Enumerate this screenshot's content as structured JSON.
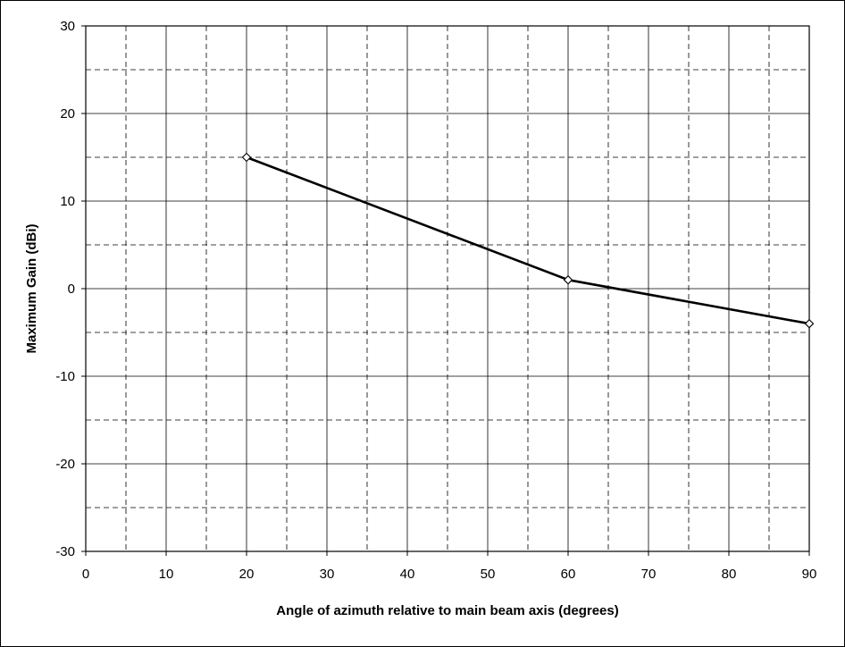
{
  "chart_data": {
    "type": "line",
    "title": "",
    "xlabel": "Angle of azimuth relative to main beam axis (degrees)",
    "ylabel": "Maximum Gain (dBi)",
    "xlim": [
      0,
      90
    ],
    "ylim": [
      -30,
      30
    ],
    "x_major_ticks": [
      0,
      10,
      20,
      30,
      40,
      50,
      60,
      70,
      80,
      90
    ],
    "y_major_ticks": [
      -30,
      -20,
      -10,
      0,
      10,
      20,
      30
    ],
    "x_minor_ticks": [
      5,
      15,
      25,
      35,
      45,
      55,
      65,
      75,
      85
    ],
    "y_minor_ticks": [
      -25,
      -15,
      -5,
      5,
      15,
      25
    ],
    "grid": "major solid, minor dashed",
    "legend": "none",
    "series": [
      {
        "x": [
          20,
          60,
          90
        ],
        "y": [
          15,
          1,
          -4
        ],
        "color": "#000000",
        "marker": "diamond"
      }
    ]
  }
}
